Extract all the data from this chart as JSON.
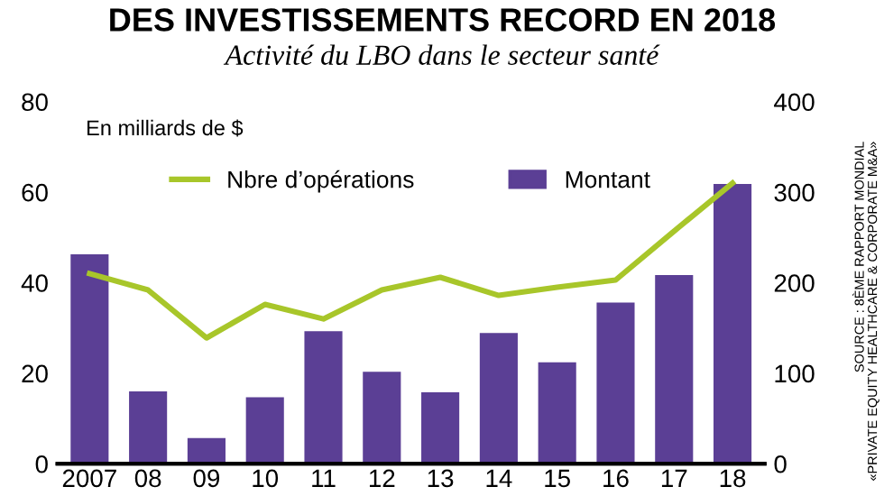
{
  "chart_data": {
    "type": "bar",
    "title": "DES INVESTISSEMENTS RECORD EN 2018",
    "subtitle": "Activité du LBO dans le secteur santé",
    "categories": [
      "2007",
      "08",
      "09",
      "10",
      "11",
      "12",
      "13",
      "14",
      "15",
      "16",
      "17",
      "18"
    ],
    "series": [
      {
        "name": "Nbre d’opérations",
        "type": "line",
        "axis": "y2",
        "color": "#a8c62a",
        "values": [
          210,
          192,
          139,
          176,
          160,
          192,
          206,
          186,
          195,
          203,
          257,
          310
        ]
      },
      {
        "name": "Montant",
        "color": "#5b3f95",
        "values": [
          46.3,
          16,
          5.7,
          14.7,
          29.3,
          20.3,
          15.8,
          28.9,
          22.4,
          35.6,
          41.7,
          61.8
        ]
      }
    ],
    "ylim": [
      0,
      80
    ],
    "yticks": [
      0,
      20,
      40,
      60,
      80
    ],
    "y2lim": [
      0,
      400
    ],
    "y2ticks": [
      0,
      100,
      200,
      300,
      400
    ],
    "annotations": [
      "En milliards de $",
      "SOURCE : 8ÈME RAPPORT MONDIAL\n«PRIVATE EQUITY HEALTHCARE & CORPORATE M&A»"
    ],
    "legend": "top",
    "grid": false,
    "marker": "none",
    "line_style": "solid"
  }
}
